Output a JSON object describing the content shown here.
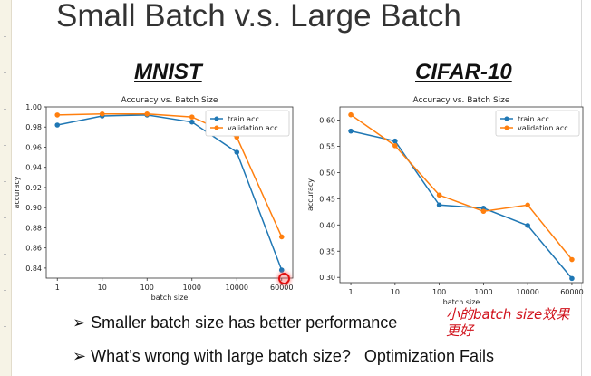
{
  "slide": {
    "title": "Small Batch v.s. Large Batch",
    "bullets": [
      "Smaller batch size has better performance",
      "What’s wrong with large batch size?   Optimization Fails"
    ],
    "bullet_marker": "➢",
    "handwritten_note": "小的batch size效果更好"
  },
  "colors": {
    "train": "#1f77b4",
    "validation": "#ff7f0e",
    "note": "#d0101a"
  },
  "chart_data": [
    {
      "type": "line",
      "dataset": "MNIST",
      "title": "Accuracy vs. Batch Size",
      "xlabel": "batch size",
      "ylabel": "accuracy",
      "categories": [
        "1",
        "10",
        "100",
        "1000",
        "10000",
        "60000"
      ],
      "yticks": [
        "0.84",
        "0.86",
        "0.88",
        "0.90",
        "0.92",
        "0.94",
        "0.96",
        "0.98",
        "1.00"
      ],
      "ylim": [
        0.83,
        1.0
      ],
      "legend": "top-right",
      "series": [
        {
          "name": "train acc",
          "values": [
            0.982,
            0.991,
            0.992,
            0.985,
            0.955,
            0.838
          ]
        },
        {
          "name": "validation acc",
          "values": [
            0.992,
            0.993,
            0.993,
            0.99,
            0.97,
            0.871
          ]
        }
      ]
    },
    {
      "type": "line",
      "dataset": "CIFAR-10",
      "title": "Accuracy vs. Batch Size",
      "xlabel": "batch size",
      "ylabel": "accuracy",
      "categories": [
        "1",
        "10",
        "100",
        "1000",
        "10000",
        "60000"
      ],
      "yticks": [
        "0.30",
        "0.35",
        "0.40",
        "0.45",
        "0.50",
        "0.55",
        "0.60"
      ],
      "ylim": [
        0.29,
        0.625
      ],
      "legend": "top-right",
      "series": [
        {
          "name": "train acc",
          "values": [
            0.579,
            0.56,
            0.438,
            0.432,
            0.399,
            0.298
          ]
        },
        {
          "name": "validation acc",
          "values": [
            0.61,
            0.551,
            0.457,
            0.426,
            0.438,
            0.334
          ]
        }
      ]
    }
  ]
}
